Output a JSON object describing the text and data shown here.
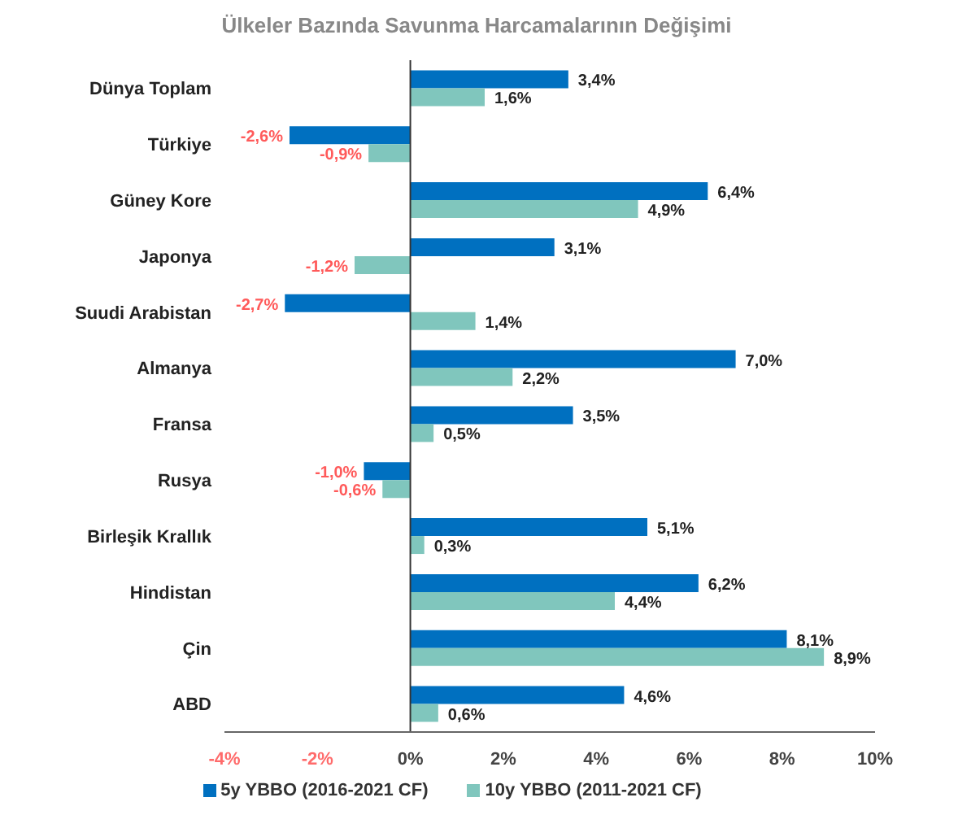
{
  "chart_data": {
    "type": "bar",
    "orientation": "horizontal",
    "title": "Ülkeler Bazında Savunma Harcamalarının Değişimi",
    "categories": [
      "Dünya Toplam",
      "Türkiye",
      "Güney Kore",
      "Japonya",
      "Suudi Arabistan",
      "Almanya",
      "Fransa",
      "Rusya",
      "Birleşik Krallık",
      "Hindistan",
      "Çin",
      "ABD"
    ],
    "series": [
      {
        "name": "5y YBBO (2016-2021 CF)",
        "color": "#0070c0",
        "values": [
          3.4,
          -2.6,
          6.4,
          3.1,
          -2.7,
          7.0,
          3.5,
          -1.0,
          5.1,
          6.2,
          8.1,
          4.6
        ],
        "value_labels": [
          "3,4%",
          "-2,6%",
          "6,4%",
          "3,1%",
          "-2,7%",
          "7,0%",
          "3,5%",
          "-1,0%",
          "5,1%",
          "6,2%",
          "8,1%",
          "4,6%"
        ]
      },
      {
        "name": "10y YBBO (2011-2021 CF)",
        "color": "#80c6bd",
        "values": [
          1.6,
          -0.9,
          4.9,
          -1.2,
          1.4,
          2.2,
          0.5,
          -0.6,
          0.3,
          4.4,
          8.9,
          0.6
        ],
        "value_labels": [
          "1,6%",
          "-0,9%",
          "4,9%",
          "-1,2%",
          "1,4%",
          "2,2%",
          "0,5%",
          "-0,6%",
          "0,3%",
          "4,4%",
          "8,9%",
          "0,6%"
        ]
      }
    ],
    "xlim": [
      -4,
      10
    ],
    "xticks": [
      {
        "value": -4,
        "label": "-4%"
      },
      {
        "value": -2,
        "label": "-2%"
      },
      {
        "value": 0,
        "label": "0%"
      },
      {
        "value": 2,
        "label": "2%"
      },
      {
        "value": 4,
        "label": "4%"
      },
      {
        "value": 6,
        "label": "6%"
      },
      {
        "value": 8,
        "label": "8%"
      },
      {
        "value": 10,
        "label": "10%"
      }
    ],
    "legend": "bottom"
  }
}
